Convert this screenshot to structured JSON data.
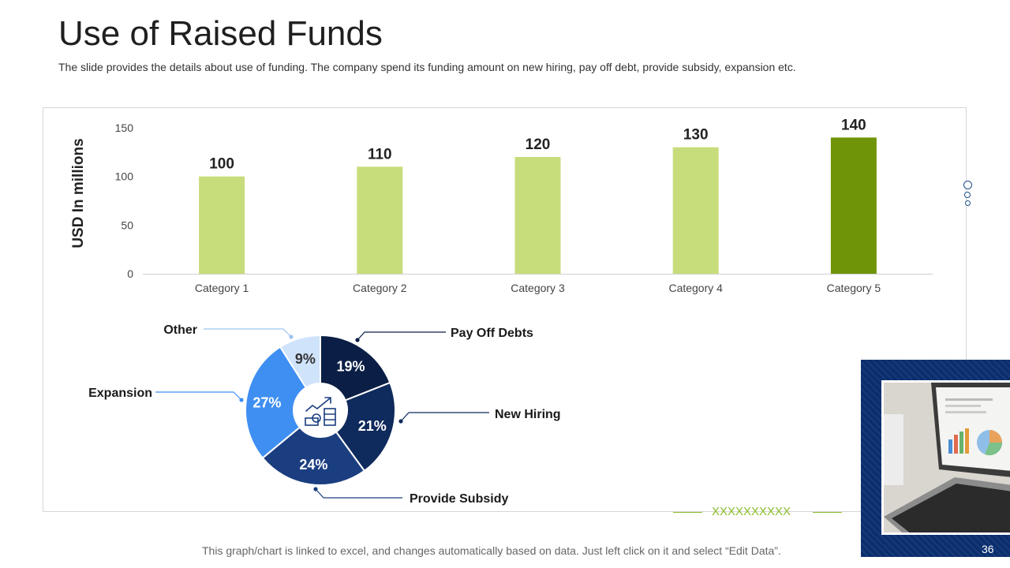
{
  "page": {
    "title": "Use of Raised Funds",
    "subtitle": "The slide provides the details about use of funding. The company spend its funding amount on new hiring, pay off debt, provide subsidy, expansion etc.",
    "footer": "This graph/chart is linked to excel, and changes automatically based on data. Just left click on it and select “Edit Data”.",
    "decoration_text": "XXXXXXXXXX",
    "page_number": "36"
  },
  "chart_data": [
    {
      "type": "bar",
      "categories": [
        "Category 1",
        "Category 2",
        "Category 3",
        "Category 4",
        "Category 5"
      ],
      "values": [
        100,
        110,
        120,
        130,
        140
      ],
      "data_labels": [
        "100",
        "110",
        "120",
        "130",
        "140"
      ],
      "ylabel": "USD In millions",
      "xlabel": "",
      "title": "",
      "ylim": [
        0,
        150
      ],
      "yticks": [
        0,
        50,
        100,
        150
      ],
      "ytick_labels": [
        "0",
        "50",
        "100",
        "150"
      ],
      "grid": false,
      "colors": [
        "#c7dd7b",
        "#c7dd7b",
        "#c7dd7b",
        "#c7dd7b",
        "#6f9408"
      ],
      "label_sizes": [
        "normal",
        "normal",
        "normal",
        "normal",
        "normal"
      ]
    },
    {
      "type": "pie",
      "variant": "donut",
      "center_icon": "money-growth-icon",
      "slices": [
        {
          "label": "Pay Off Debts",
          "value": 19,
          "pct_label": "19%",
          "color": "#0b1e45"
        },
        {
          "label": "New Hiring",
          "value": 21,
          "pct_label": "21%",
          "color": "#0f2a5c"
        },
        {
          "label": "Provide Subsidy",
          "value": 24,
          "pct_label": "24%",
          "color": "#1b3e80"
        },
        {
          "label": "Expansion",
          "value": 27,
          "pct_label": "27%",
          "color": "#3f8ff2"
        },
        {
          "label": "Other",
          "value": 9,
          "pct_label": "9%",
          "color": "#cfe3fb"
        }
      ]
    }
  ],
  "colors": {
    "accent_green": "#8bbd2b",
    "navy": "#0a2e6e"
  }
}
